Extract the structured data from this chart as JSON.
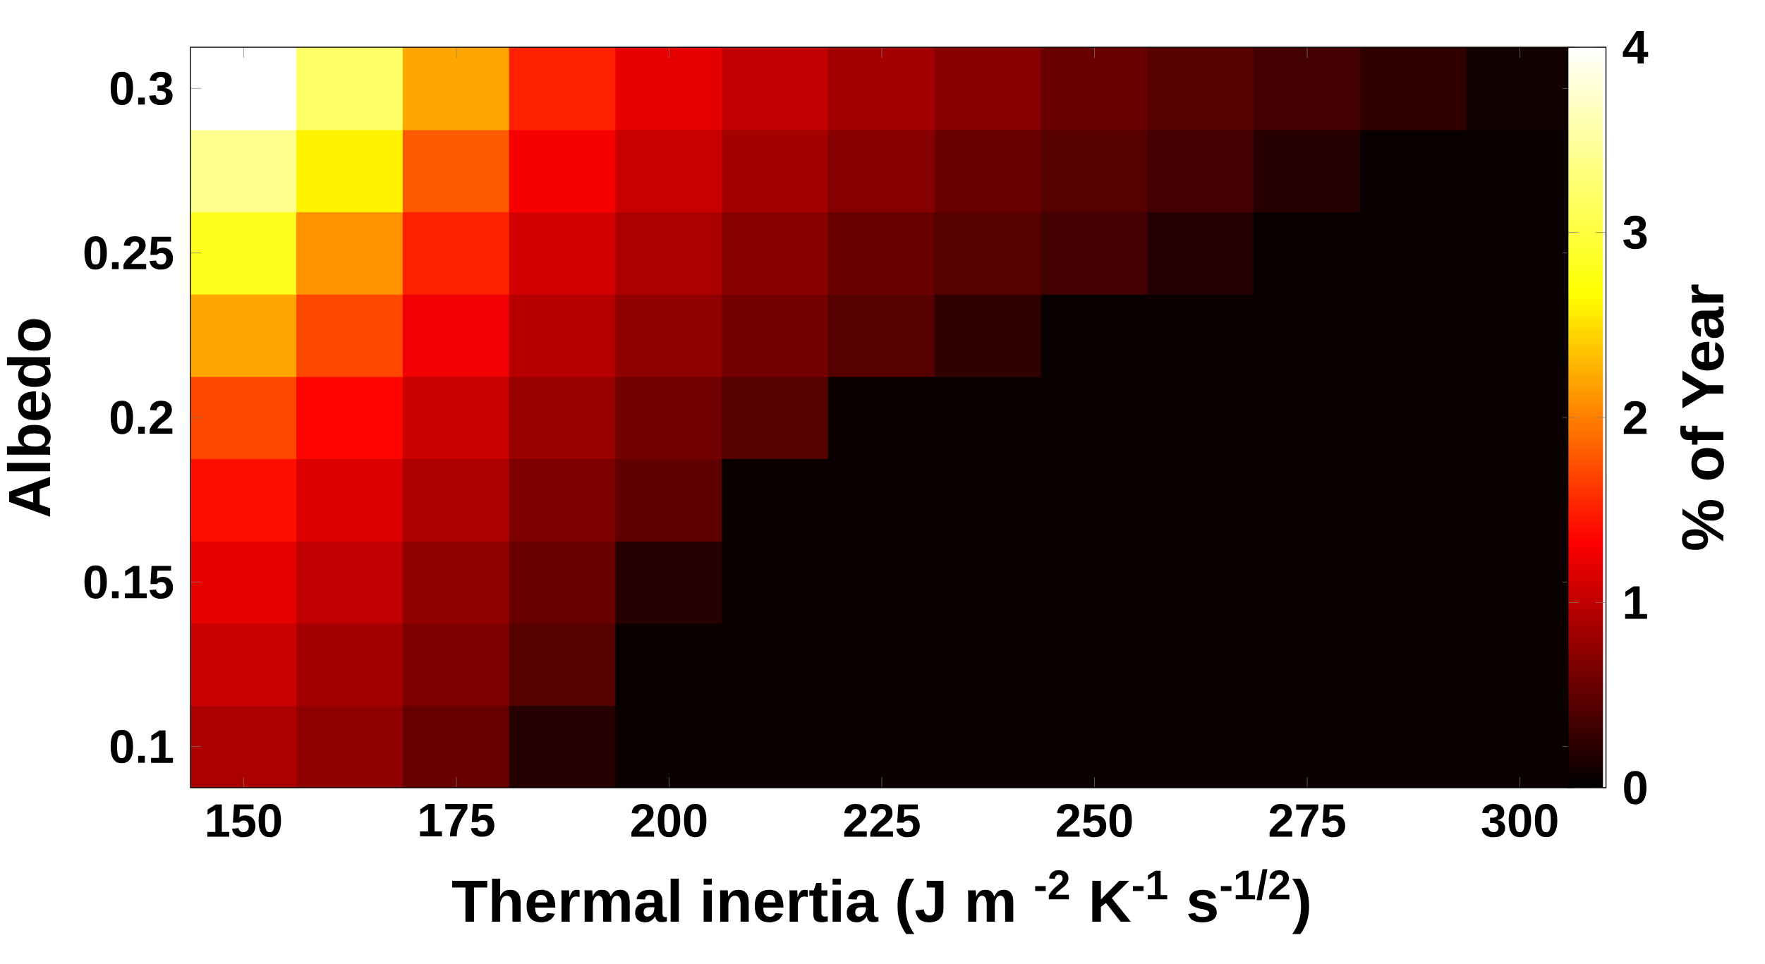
{
  "chart_data": {
    "type": "heatmap",
    "xlabel": "Thermal inertia (J m $^{-2}$ K$^{-1}$ s$^{-1/2}$)",
    "ylabel": "Albedo",
    "clabel": "% of Year",
    "categories": [
      "150",
      null,
      "175",
      null,
      "200",
      null,
      "225",
      null,
      "250",
      null,
      "275",
      null,
      "300"
    ],
    "y_categories": [
      "0.3",
      null,
      "0.25",
      null,
      "0.2",
      null,
      "0.15",
      null,
      "0.1"
    ],
    "cells": [
      [
        4.0,
        3.2,
        2.2,
        1.5,
        1.2,
        1.0,
        0.85,
        0.7,
        0.55,
        0.45,
        0.35,
        0.25,
        0.1
      ],
      [
        3.4,
        2.6,
        1.8,
        1.3,
        1.05,
        0.85,
        0.7,
        0.55,
        0.45,
        0.35,
        0.2,
        0.05,
        0.05
      ],
      [
        2.8,
        2.1,
        1.5,
        1.1,
        0.9,
        0.7,
        0.55,
        0.45,
        0.35,
        0.2,
        0.05,
        0.05,
        0.05
      ],
      [
        2.2,
        1.7,
        1.25,
        0.95,
        0.75,
        0.6,
        0.45,
        0.25,
        0.05,
        0.05,
        0.05,
        0.05,
        0.05
      ],
      [
        1.7,
        1.35,
        1.05,
        0.8,
        0.6,
        0.45,
        0.05,
        0.05,
        0.05,
        0.05,
        0.05,
        0.05,
        0.05
      ],
      [
        1.4,
        1.15,
        0.9,
        0.65,
        0.5,
        0.05,
        0.05,
        0.05,
        0.05,
        0.05,
        0.05,
        0.05,
        0.05
      ],
      [
        1.2,
        1.0,
        0.75,
        0.55,
        0.2,
        0.05,
        0.05,
        0.05,
        0.05,
        0.05,
        0.05,
        0.05,
        0.05
      ],
      [
        1.05,
        0.85,
        0.65,
        0.45,
        0.05,
        0.05,
        0.05,
        0.05,
        0.05,
        0.05,
        0.05,
        0.05,
        0.05
      ],
      [
        0.9,
        0.75,
        0.55,
        0.2,
        0.05,
        0.05,
        0.05,
        0.05,
        0.05,
        0.05,
        0.05,
        0.05,
        0.05
      ]
    ],
    "clim": [
      0,
      4
    ],
    "cticks": [
      0,
      1,
      2,
      3,
      4
    ]
  }
}
